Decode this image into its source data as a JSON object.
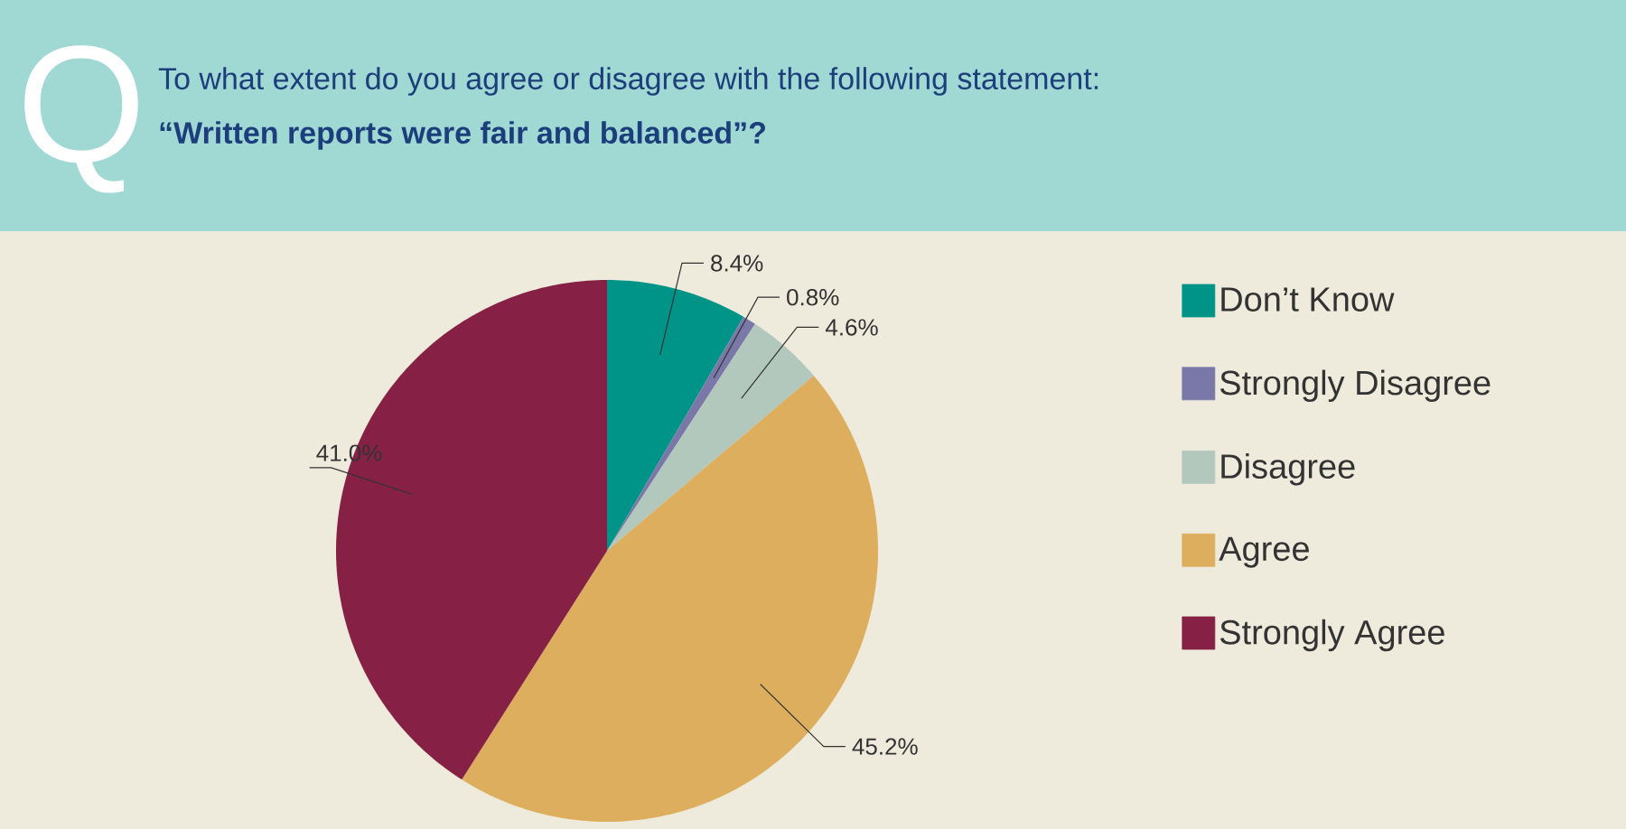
{
  "chart_data": {
    "type": "pie",
    "title": "To what extent do you agree or disagree with the following statement:",
    "subtitle": "“Written reports were fair and balanced”?",
    "annotations": [
      "Q"
    ],
    "categories": [
      "Don’t Know",
      "Strongly Disagree",
      "Disagree",
      "Agree",
      "Strongly Agree"
    ],
    "values": [
      8.4,
      0.8,
      4.6,
      45.2,
      41.0
    ],
    "colors": [
      "#009488",
      "#7a78a8",
      "#b3c8bd",
      "#dcae5e",
      "#862145"
    ],
    "value_labels": [
      "8.4%",
      "0.8%",
      "4.6%",
      "45.2%",
      "41.0%"
    ],
    "legend": "right"
  }
}
